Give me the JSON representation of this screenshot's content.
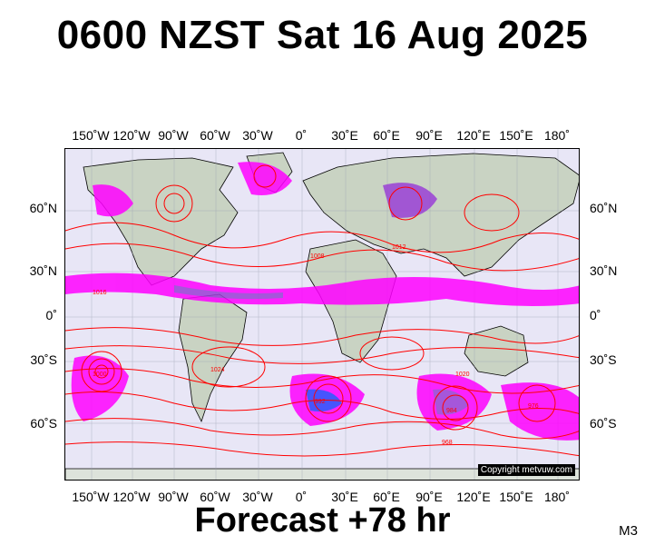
{
  "header": {
    "title": "0600 NZST Sat 16 Aug 2025"
  },
  "footer": {
    "forecast": "Forecast +78 hr",
    "model": "M3"
  },
  "map": {
    "copyright": "Copyright metvuw.com",
    "lon_labels": [
      "150˚W",
      "120˚W",
      "90˚W",
      "60˚W",
      "30˚W",
      "0˚",
      "30˚E",
      "60˚E",
      "90˚E",
      "120˚E",
      "150˚E",
      "180˚"
    ],
    "lat_labels": [
      "60˚N",
      "30˚N",
      "0˚",
      "30˚S",
      "60˚S"
    ],
    "isobar_labels": [
      "1016",
      "1024",
      "1008",
      "1000",
      "992",
      "984",
      "976",
      "968",
      "1020",
      "1012"
    ],
    "colors": {
      "ocean": "#e8e6f6",
      "land": "#c9d3c3",
      "isobar": "#ff0000",
      "precip_light": "#ff00ff",
      "precip_mid": "#9a3fd6",
      "precip_heavy": "#2a3cff",
      "border": "#000000"
    }
  }
}
